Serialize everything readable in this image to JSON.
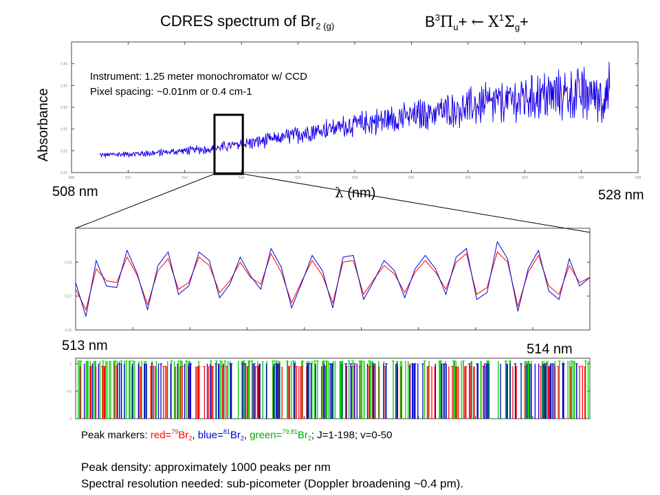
{
  "header": {
    "title_main": "CDRES spectrum of Br",
    "title_sub": "2 (g)",
    "transition_upper": "B",
    "transition_upper_sup": "3",
    "transition_upper_sym": "Π",
    "transition_upper_sub": "u",
    "transition_plus": "+",
    "transition_arrow": "←",
    "transition_lower": "X",
    "transition_lower_sup": "1",
    "transition_lower_sym": "Σ",
    "transition_lower_sub": "g",
    "transition_plus2": "+"
  },
  "annotations": {
    "instrument": "Instrument: 1.25 meter monochromator w/ CCD",
    "pixel_spacing": "Pixel spacing: ~0.01nm or 0.4 cm-1",
    "left_top": "508 nm",
    "right_top": "528 nm",
    "xlabel_sym": "λ",
    "xlabel_unit": "(nm)",
    "left_zoom": "513 nm",
    "right_zoom": "514 nm"
  },
  "legend": {
    "prefix": "Peak markers: ",
    "red_label": "red=",
    "red_sup": "79",
    "red_species": "Br",
    "red_sub": "2",
    "sep1": ", ",
    "blue_label": "blue=",
    "blue_sup": "81",
    "blue_species": "Br",
    "blue_sub": "2",
    "sep2": ", ",
    "green_label": "green=",
    "green_sup": "79,81",
    "green_species": "Br",
    "green_sub": "2",
    "suffix": "; J=1-198; v=0-50",
    "colors": {
      "red": "#ff0000",
      "blue": "#0000cc",
      "green": "#00cc00"
    }
  },
  "notes": {
    "line1": "Peak density: approximately 1000 peaks per nm",
    "line2": "Spectral resolution needed: sub-picometer (Doppler broadening ~0.4 pm)."
  },
  "chart_data": [
    {
      "type": "line",
      "ylabel": "Absorbance",
      "xlabel": "λ (nm)",
      "xlim": [
        508,
        528
      ],
      "ylim": [
        0.15,
        0.45
      ],
      "x_ticks": [
        508,
        510,
        512,
        514,
        516,
        518,
        520,
        522,
        524,
        526,
        528
      ],
      "y_ticks": [
        0.15,
        0.2,
        0.25,
        0.3,
        0.35,
        0.4
      ],
      "data_range": [
        509,
        527
      ],
      "trend": {
        "x": [
          509,
          511,
          513,
          515,
          517,
          519,
          521,
          523,
          525,
          527
        ],
        "y": [
          0.19,
          0.195,
          0.205,
          0.225,
          0.25,
          0.27,
          0.29,
          0.31,
          0.33,
          0.33
        ]
      },
      "zoom_box": [
        513,
        514
      ],
      "series": [
        {
          "color": "#0000ff"
        },
        {
          "color": "#ff0000"
        }
      ]
    },
    {
      "type": "line",
      "xlim": [
        513,
        514
      ],
      "ylim": [
        0.2,
        0.26
      ],
      "y_ticks": [
        0.2,
        0.22,
        0.24
      ],
      "x": [
        513.0,
        513.02,
        513.04,
        513.06,
        513.08,
        513.1,
        513.12,
        513.14,
        513.16,
        513.18,
        513.2,
        513.22,
        513.24,
        513.26,
        513.28,
        513.3,
        513.32,
        513.34,
        513.36,
        513.38,
        513.4,
        513.42,
        513.44,
        513.46,
        513.48,
        513.5,
        513.52,
        513.54,
        513.56,
        513.58,
        513.6,
        513.62,
        513.64,
        513.66,
        513.68,
        513.7,
        513.72,
        513.74,
        513.76,
        513.78,
        513.8,
        513.82,
        513.84,
        513.86,
        513.88,
        513.9,
        513.92,
        513.94,
        513.96,
        513.98,
        514.0
      ],
      "series": [
        {
          "color": "#0000cc",
          "values": [
            0.228,
            0.208,
            0.241,
            0.226,
            0.225,
            0.247,
            0.233,
            0.212,
            0.238,
            0.246,
            0.221,
            0.226,
            0.246,
            0.241,
            0.219,
            0.227,
            0.243,
            0.232,
            0.224,
            0.248,
            0.237,
            0.213,
            0.228,
            0.244,
            0.235,
            0.213,
            0.243,
            0.244,
            0.218,
            0.229,
            0.241,
            0.235,
            0.219,
            0.236,
            0.244,
            0.236,
            0.221,
            0.243,
            0.248,
            0.218,
            0.222,
            0.252,
            0.242,
            0.211,
            0.236,
            0.247,
            0.223,
            0.218,
            0.242,
            0.226,
            0.231
          ]
        },
        {
          "color": "#ff0000",
          "values": [
            0.224,
            0.212,
            0.236,
            0.229,
            0.228,
            0.243,
            0.232,
            0.215,
            0.235,
            0.242,
            0.224,
            0.228,
            0.243,
            0.238,
            0.222,
            0.229,
            0.24,
            0.231,
            0.227,
            0.245,
            0.234,
            0.216,
            0.229,
            0.241,
            0.232,
            0.216,
            0.24,
            0.241,
            0.221,
            0.23,
            0.238,
            0.233,
            0.222,
            0.234,
            0.241,
            0.234,
            0.224,
            0.24,
            0.245,
            0.221,
            0.225,
            0.246,
            0.24,
            0.214,
            0.234,
            0.244,
            0.226,
            0.221,
            0.238,
            0.228,
            0.231
          ]
        }
      ]
    },
    {
      "type": "bar",
      "xlim": [
        513,
        514
      ],
      "ylim": [
        0,
        1.1
      ],
      "y_ticks": [
        0,
        0.5,
        1
      ],
      "series": [
        {
          "color": "#ff0000",
          "marker_height": 0.95
        },
        {
          "color": "#0000cc",
          "marker_height": 1.0
        },
        {
          "color": "#00cc00",
          "marker_height": 1.05
        }
      ]
    }
  ]
}
